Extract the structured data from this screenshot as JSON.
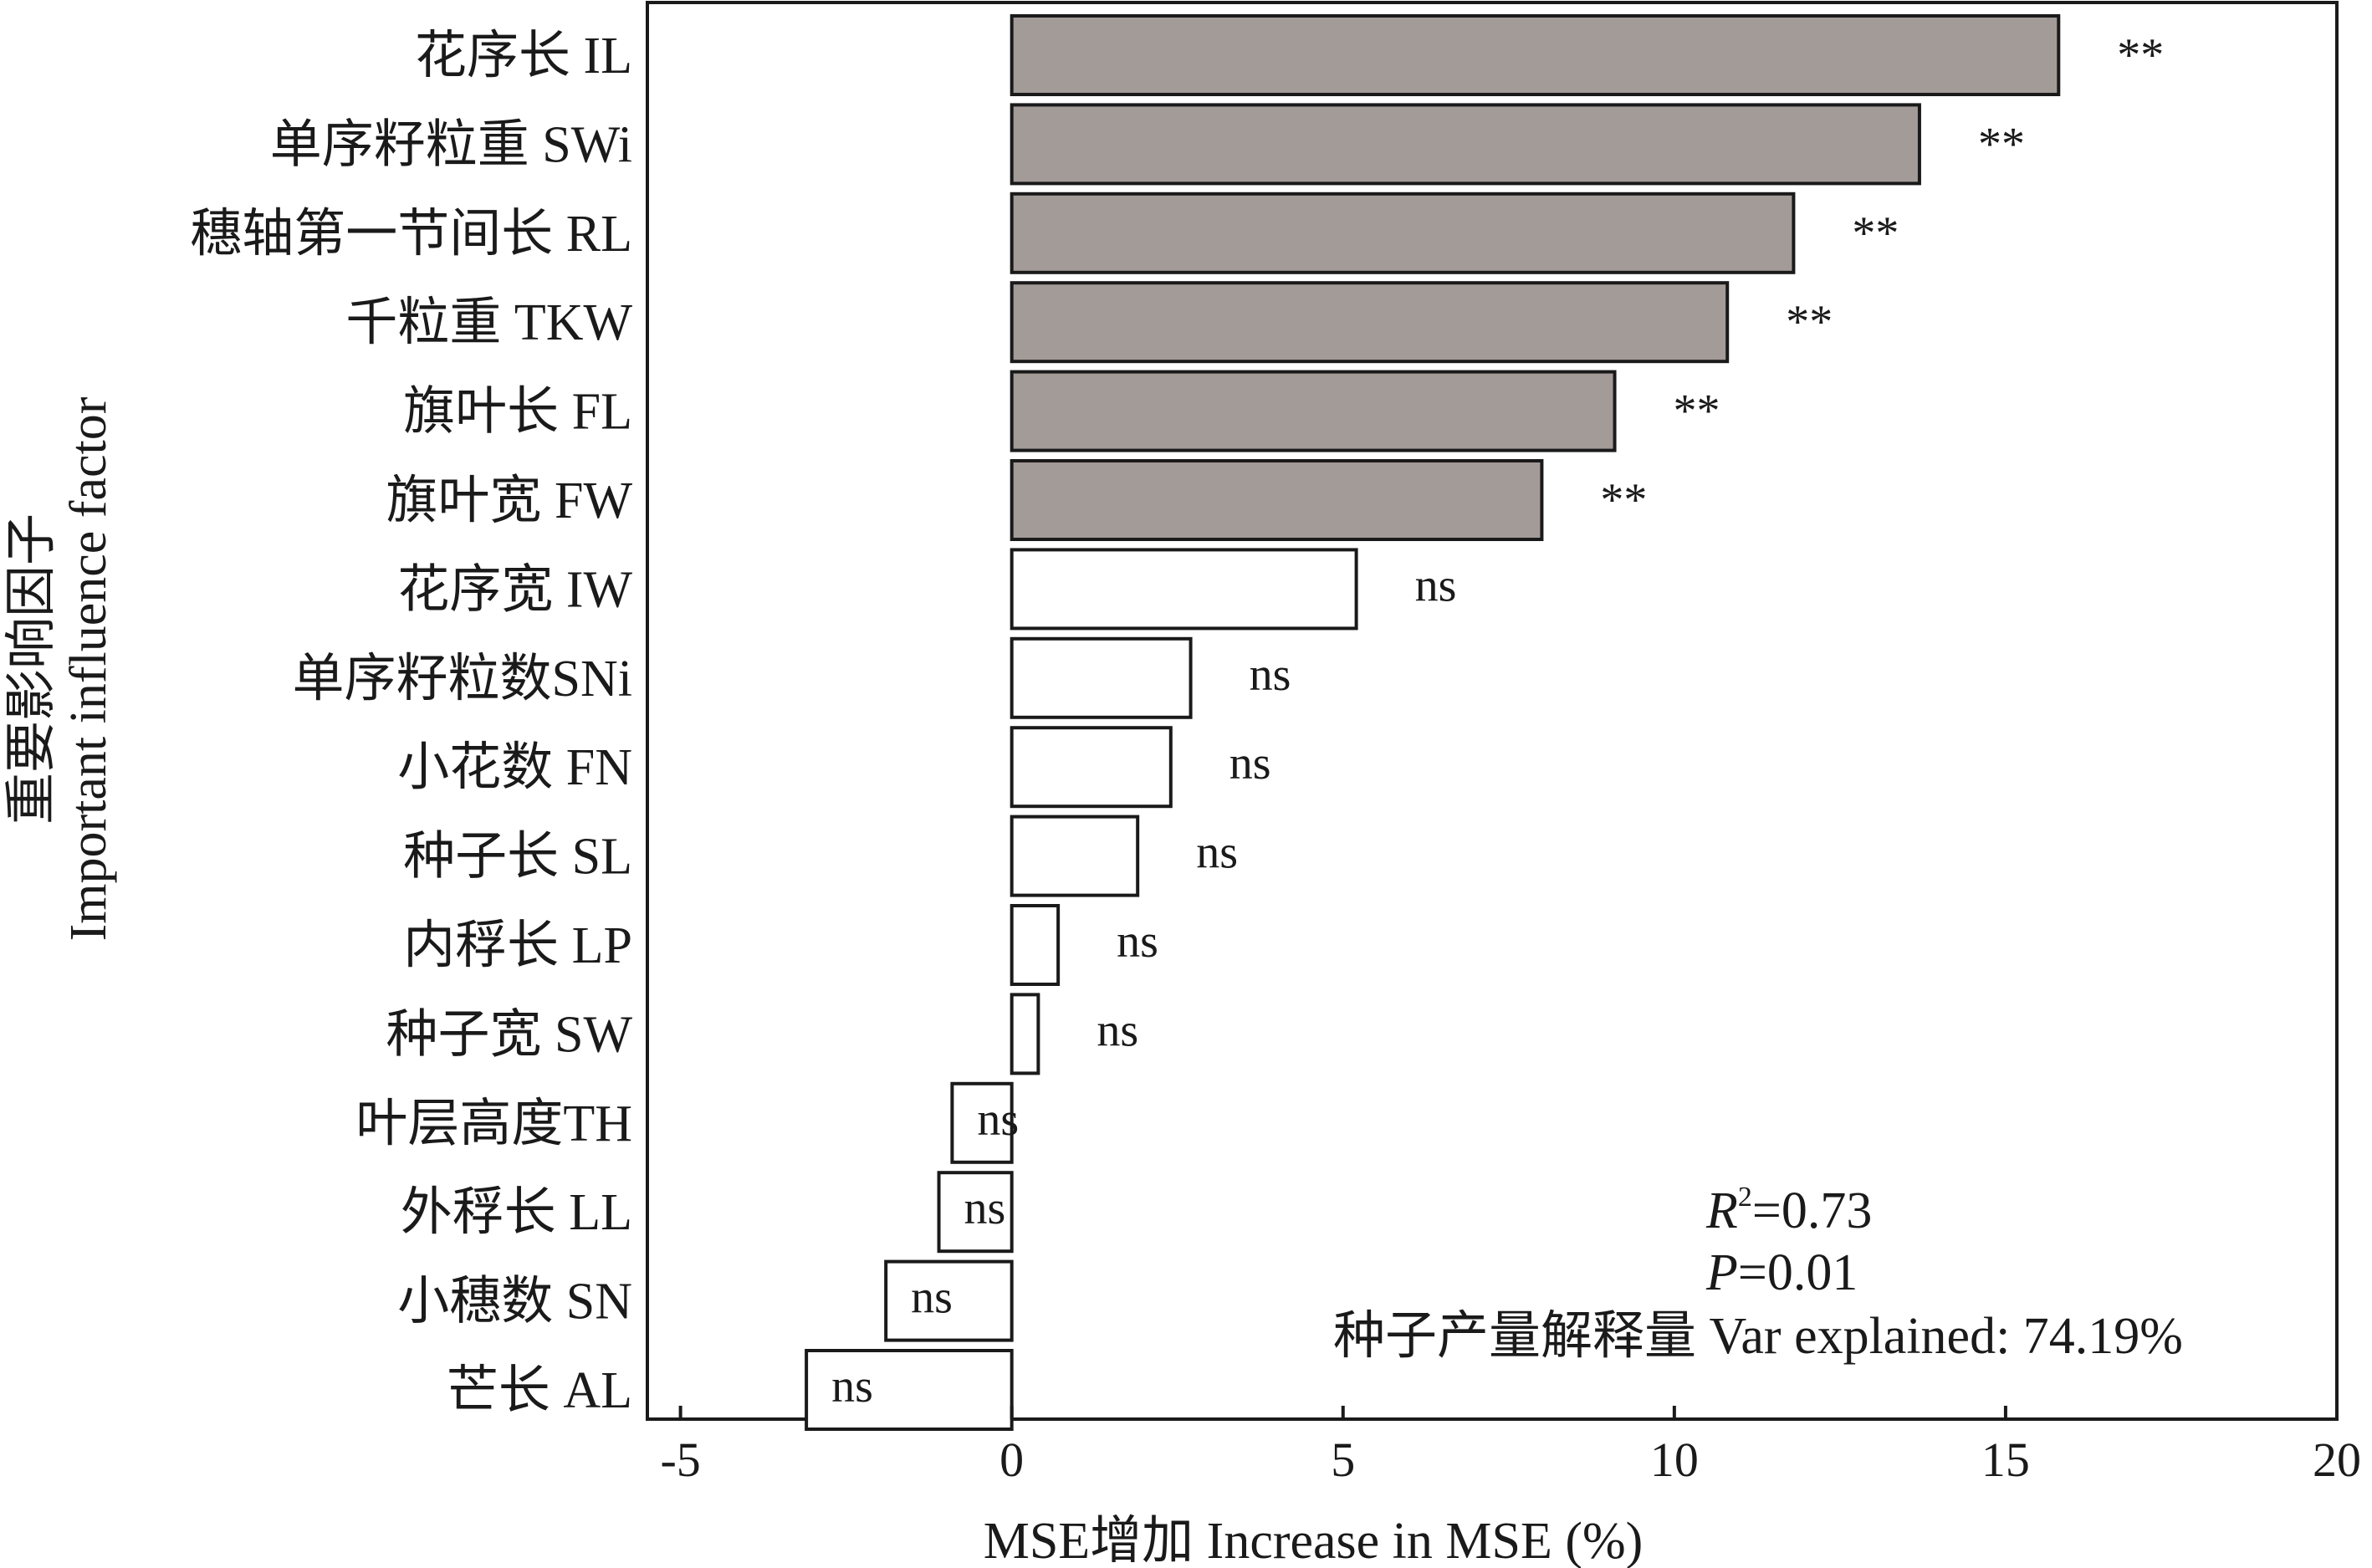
{
  "chart_data": {
    "type": "bar",
    "orientation": "horizontal",
    "xlabel": "MSE增加 Increase in MSE (%)",
    "ylabel_line1": "重要影响因子",
    "ylabel_line2": "Important influence factor",
    "xlim": [
      -5.5,
      20
    ],
    "xticks": [
      -5,
      0,
      5,
      10,
      15,
      20
    ],
    "xtick_labels": [
      "-5",
      "0",
      "5",
      "10",
      "15",
      "20"
    ],
    "categories": [
      "花序长 IL",
      "单序籽粒重 SWi",
      "穗轴第一节间长 RL",
      "千粒重 TKW",
      "旗叶长 FL",
      "旗叶宽 FW",
      "花序宽 IW",
      "单序籽粒数SNi",
      "小花数 FN",
      "种子长 SL",
      "内稃长 LP",
      "种子宽 SW",
      "叶层高度TH",
      "外稃长 LL",
      "小穗数 SN",
      "芒长 AL"
    ],
    "values": [
      15.8,
      13.7,
      11.8,
      10.8,
      9.1,
      8.0,
      5.2,
      2.7,
      2.4,
      1.9,
      0.7,
      0.4,
      -0.9,
      -1.1,
      -1.9,
      -3.1
    ],
    "significance": [
      "**",
      "**",
      "**",
      "**",
      "**",
      "**",
      "ns",
      "ns",
      "ns",
      "ns",
      "ns",
      "ns",
      "ns",
      "ns",
      "ns",
      "ns"
    ],
    "colors": {
      "significant": "#a39b98",
      "not_significant": "#ffffff",
      "stroke": "#1a1a1a"
    },
    "annotations": {
      "r2_symbol": "R",
      "r2_sup": "2",
      "r2_value": "=0.73",
      "p_symbol": "P",
      "p_value": "=0.01",
      "var_explained": "种子产量解释量 Var explained: 74.19%"
    }
  }
}
